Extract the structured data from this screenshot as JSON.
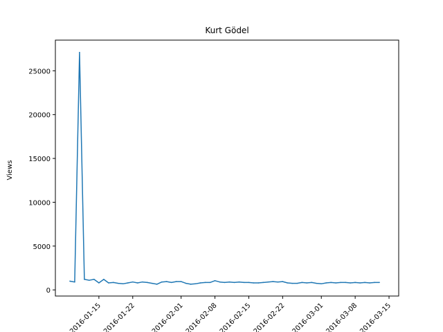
{
  "chart_data": {
    "type": "line",
    "title": "Kurt Gödel",
    "xlabel": "",
    "ylabel": "Views",
    "x_tick_labels": [
      "2016-01-15",
      "2016-01-22",
      "2016-02-01",
      "2016-02-08",
      "2016-02-15",
      "2016-02-22",
      "2016-03-01",
      "2016-03-08",
      "2016-03-15"
    ],
    "y_ticks": [
      0,
      5000,
      10000,
      15000,
      20000,
      25000
    ],
    "xlim": [
      "2016-01-06",
      "2016-03-17"
    ],
    "ylim": [
      -700,
      28500
    ],
    "grid": false,
    "series": [
      {
        "color": "#1f77b4",
        "x": [
          "2016-01-09",
          "2016-01-10",
          "2016-01-11",
          "2016-01-12",
          "2016-01-13",
          "2016-01-14",
          "2016-01-15",
          "2016-01-16",
          "2016-01-17",
          "2016-01-18",
          "2016-01-19",
          "2016-01-20",
          "2016-01-21",
          "2016-01-22",
          "2016-01-23",
          "2016-01-24",
          "2016-01-25",
          "2016-01-26",
          "2016-01-27",
          "2016-01-28",
          "2016-01-29",
          "2016-01-30",
          "2016-01-31",
          "2016-02-01",
          "2016-02-02",
          "2016-02-03",
          "2016-02-04",
          "2016-02-05",
          "2016-02-06",
          "2016-02-07",
          "2016-02-08",
          "2016-02-09",
          "2016-02-10",
          "2016-02-11",
          "2016-02-12",
          "2016-02-13",
          "2016-02-14",
          "2016-02-15",
          "2016-02-16",
          "2016-02-17",
          "2016-02-18",
          "2016-02-19",
          "2016-02-20",
          "2016-02-21",
          "2016-02-22",
          "2016-02-23",
          "2016-02-24",
          "2016-02-25",
          "2016-02-26",
          "2016-02-27",
          "2016-02-28",
          "2016-02-29",
          "2016-03-01",
          "2016-03-02",
          "2016-03-03",
          "2016-03-04",
          "2016-03-05",
          "2016-03-06",
          "2016-03-07",
          "2016-03-08",
          "2016-03-09",
          "2016-03-10",
          "2016-03-11",
          "2016-03-12",
          "2016-03-13"
        ],
        "y": [
          1000,
          900,
          27100,
          1200,
          1100,
          1200,
          800,
          1200,
          800,
          850,
          750,
          700,
          800,
          900,
          800,
          900,
          850,
          750,
          650,
          900,
          950,
          850,
          950,
          950,
          750,
          650,
          700,
          800,
          850,
          850,
          1050,
          900,
          850,
          900,
          850,
          900,
          850,
          850,
          800,
          800,
          850,
          900,
          950,
          900,
          950,
          800,
          750,
          750,
          850,
          800,
          850,
          750,
          700,
          800,
          850,
          800,
          850,
          850,
          800,
          850,
          800,
          850,
          800,
          850,
          850
        ]
      }
    ]
  }
}
